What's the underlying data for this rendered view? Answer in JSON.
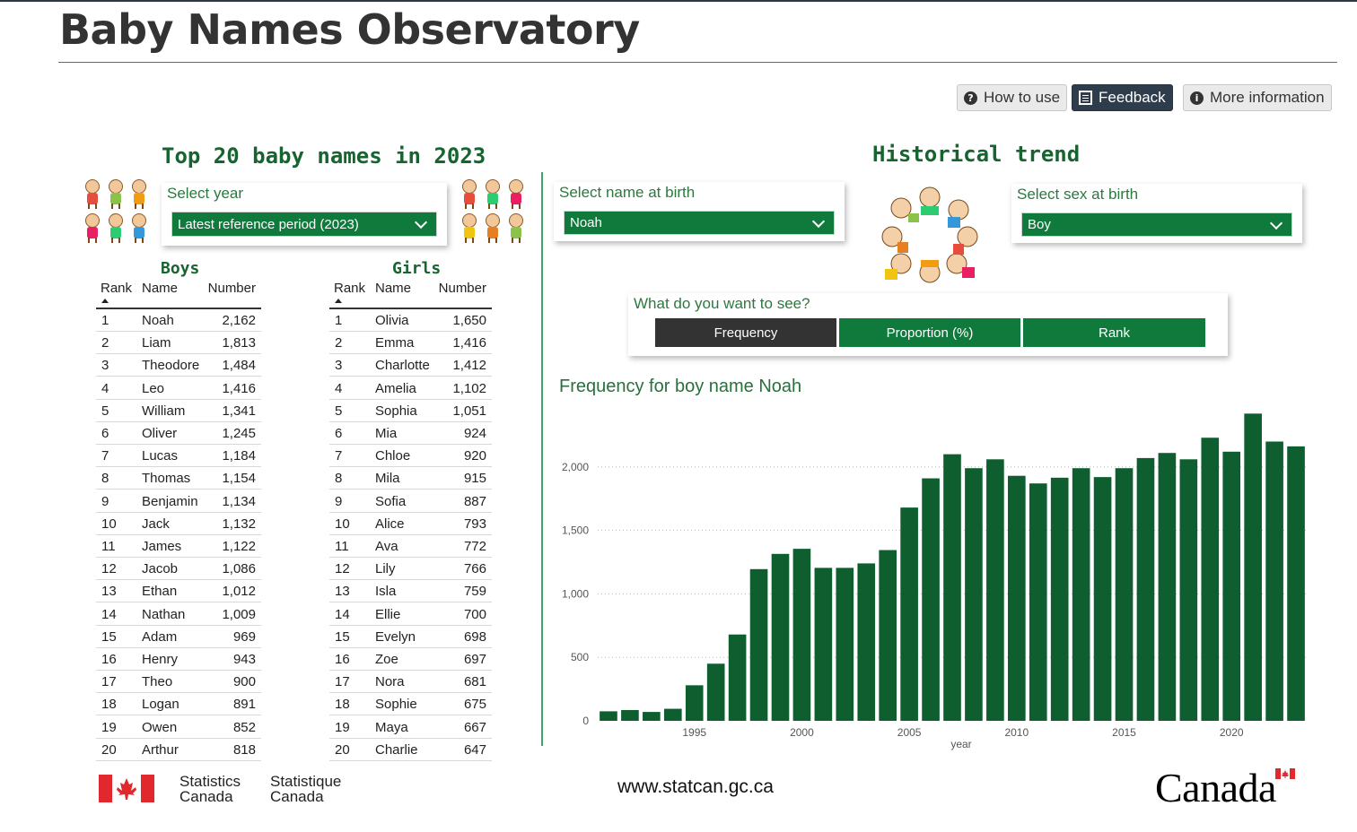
{
  "app": {
    "title": "Baby Names Observatory"
  },
  "buttons": {
    "how_to_use": "How to use",
    "feedback": "Feedback",
    "more_info": "More information"
  },
  "left": {
    "title": "Top 20 baby names in 2023",
    "year_label": "Select year",
    "year_value": "Latest reference period (2023)",
    "boys_title": "Boys",
    "girls_title": "Girls",
    "columns": {
      "rank": "Rank",
      "name": "Name",
      "number": "Number"
    },
    "boys": [
      {
        "rank": "1",
        "name": "Noah",
        "number": "2,162"
      },
      {
        "rank": "2",
        "name": "Liam",
        "number": "1,813"
      },
      {
        "rank": "3",
        "name": "Theodore",
        "number": "1,484"
      },
      {
        "rank": "4",
        "name": "Leo",
        "number": "1,416"
      },
      {
        "rank": "5",
        "name": "William",
        "number": "1,341"
      },
      {
        "rank": "6",
        "name": "Oliver",
        "number": "1,245"
      },
      {
        "rank": "7",
        "name": "Lucas",
        "number": "1,184"
      },
      {
        "rank": "8",
        "name": "Thomas",
        "number": "1,154"
      },
      {
        "rank": "9",
        "name": "Benjamin",
        "number": "1,134"
      },
      {
        "rank": "10",
        "name": "Jack",
        "number": "1,132"
      },
      {
        "rank": "11",
        "name": "James",
        "number": "1,122"
      },
      {
        "rank": "12",
        "name": "Jacob",
        "number": "1,086"
      },
      {
        "rank": "13",
        "name": "Ethan",
        "number": "1,012"
      },
      {
        "rank": "14",
        "name": "Nathan",
        "number": "1,009"
      },
      {
        "rank": "15",
        "name": "Adam",
        "number": "969"
      },
      {
        "rank": "16",
        "name": "Henry",
        "number": "943"
      },
      {
        "rank": "17",
        "name": "Theo",
        "number": "900"
      },
      {
        "rank": "18",
        "name": "Logan",
        "number": "891"
      },
      {
        "rank": "19",
        "name": "Owen",
        "number": "852"
      },
      {
        "rank": "20",
        "name": "Arthur",
        "number": "818"
      }
    ],
    "girls": [
      {
        "rank": "1",
        "name": "Olivia",
        "number": "1,650"
      },
      {
        "rank": "2",
        "name": "Emma",
        "number": "1,416"
      },
      {
        "rank": "3",
        "name": "Charlotte",
        "number": "1,412"
      },
      {
        "rank": "4",
        "name": "Amelia",
        "number": "1,102"
      },
      {
        "rank": "5",
        "name": "Sophia",
        "number": "1,051"
      },
      {
        "rank": "6",
        "name": "Mia",
        "number": "924"
      },
      {
        "rank": "7",
        "name": "Chloe",
        "number": "920"
      },
      {
        "rank": "8",
        "name": "Mila",
        "number": "915"
      },
      {
        "rank": "9",
        "name": "Sofia",
        "number": "887"
      },
      {
        "rank": "10",
        "name": "Alice",
        "number": "793"
      },
      {
        "rank": "11",
        "name": "Ava",
        "number": "772"
      },
      {
        "rank": "12",
        "name": "Lily",
        "number": "766"
      },
      {
        "rank": "13",
        "name": "Isla",
        "number": "759"
      },
      {
        "rank": "14",
        "name": "Ellie",
        "number": "700"
      },
      {
        "rank": "15",
        "name": "Evelyn",
        "number": "698"
      },
      {
        "rank": "16",
        "name": "Zoe",
        "number": "697"
      },
      {
        "rank": "17",
        "name": "Nora",
        "number": "681"
      },
      {
        "rank": "18",
        "name": "Sophie",
        "number": "675"
      },
      {
        "rank": "19",
        "name": "Maya",
        "number": "667"
      },
      {
        "rank": "20",
        "name": "Charlie",
        "number": "647"
      }
    ]
  },
  "right": {
    "title": "Historical trend",
    "name_label": "Select name at birth",
    "name_value": "Noah",
    "sex_label": "Select sex at birth",
    "sex_value": "Boy",
    "view_label": "What do you want to see?",
    "views": [
      "Frequency",
      "Proportion (%)",
      "Rank"
    ],
    "active_view": "Frequency",
    "chart_title": "Frequency for boy name Noah"
  },
  "chart_data": {
    "type": "bar",
    "xlabel": "year",
    "x": [
      1991,
      1992,
      1993,
      1994,
      1995,
      1996,
      1997,
      1998,
      1999,
      2000,
      2001,
      2002,
      2003,
      2004,
      2005,
      2006,
      2007,
      2008,
      2009,
      2010,
      2011,
      2012,
      2013,
      2014,
      2015,
      2016,
      2017,
      2018,
      2019,
      2020,
      2021,
      2022,
      2023
    ],
    "values": [
      75,
      85,
      70,
      95,
      280,
      450,
      680,
      1195,
      1315,
      1355,
      1205,
      1205,
      1240,
      1345,
      1680,
      1910,
      2100,
      1990,
      2060,
      1930,
      1870,
      1915,
      1990,
      1920,
      1990,
      2070,
      2110,
      2060,
      2230,
      2120,
      2420,
      2200,
      2162
    ],
    "yticks": [
      0,
      500,
      1000,
      1500,
      2000
    ],
    "ytick_labels": [
      "0",
      "500",
      "1,000",
      "1,500",
      "2,000"
    ],
    "xticks": [
      1995,
      2000,
      2005,
      2010,
      2015,
      2020
    ],
    "ylim": [
      0,
      2500
    ],
    "grid": "horizontal-dotted",
    "color": "#0e5e30"
  },
  "footer": {
    "stat_en_1": "Statistics",
    "stat_en_2": "Canada",
    "stat_fr_1": "Statistique",
    "stat_fr_2": "Canada",
    "url": "www.statcan.gc.ca",
    "wordmark": "Canada"
  },
  "colors": {
    "brand_green": "#107a3c",
    "heading_green": "#16642f",
    "bar_green": "#0e5e30",
    "flag_red": "#e0282d"
  }
}
